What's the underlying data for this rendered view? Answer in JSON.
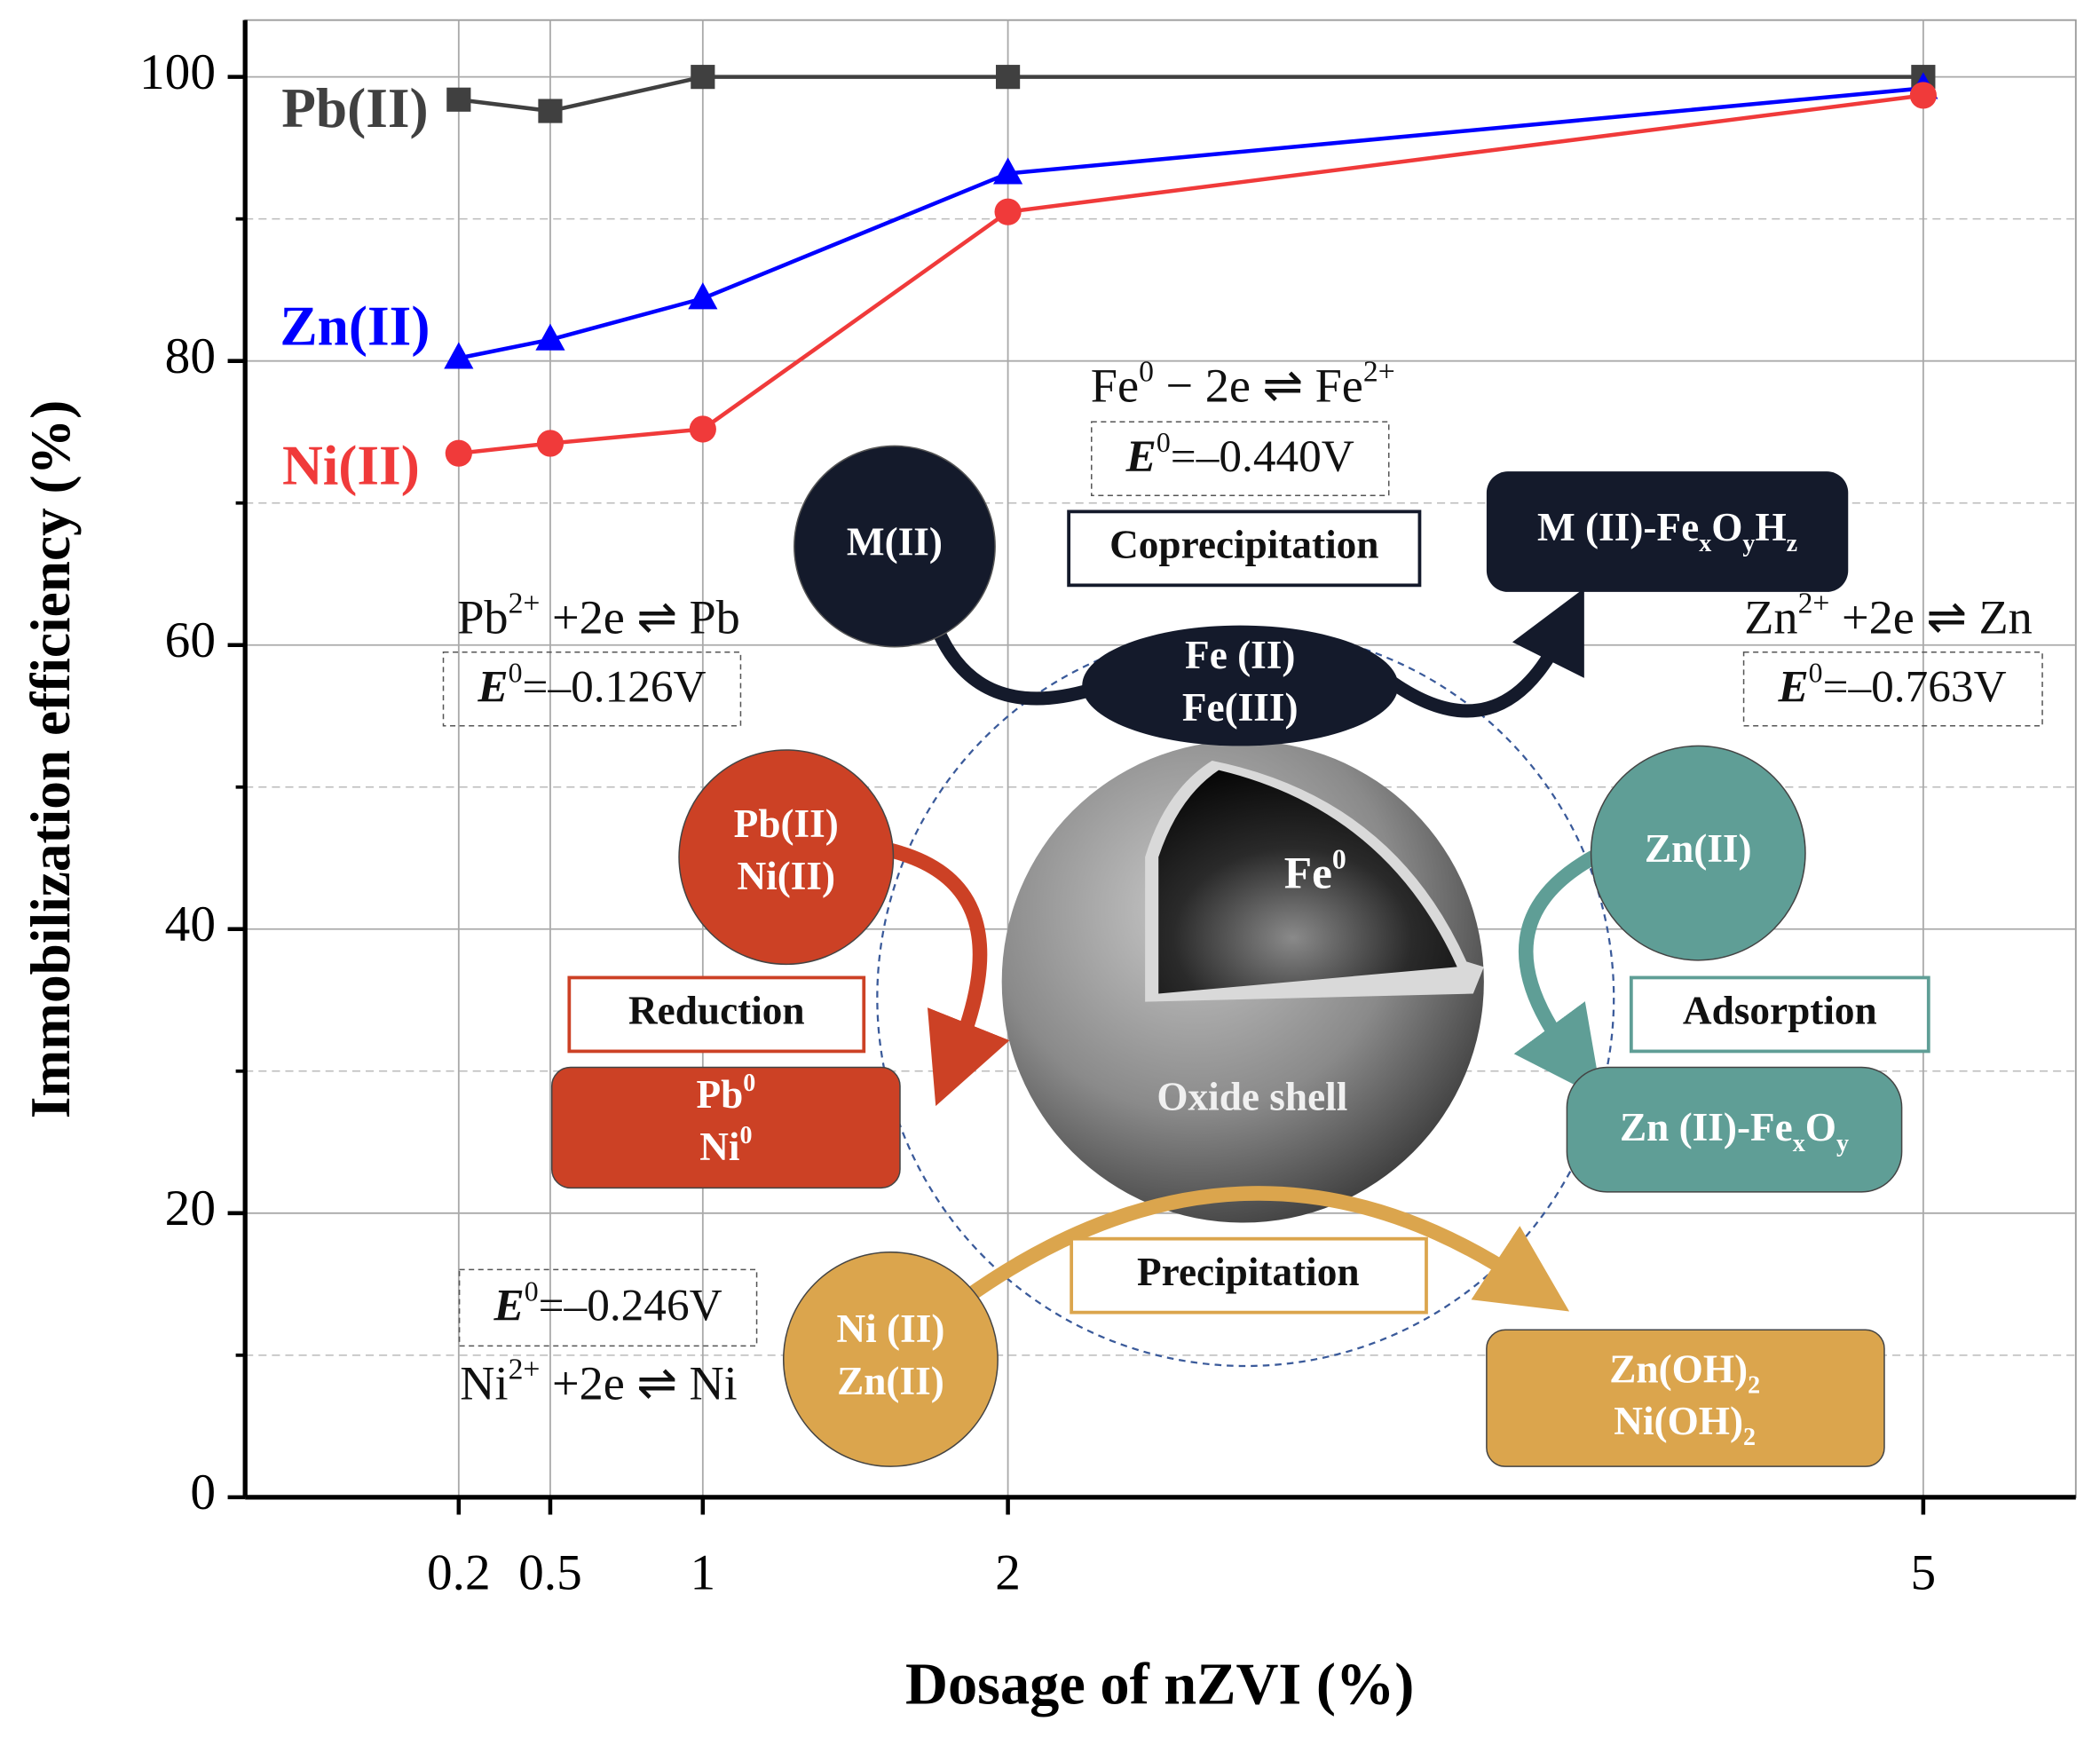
{
  "chart_data": {
    "type": "line",
    "xlabel": "Dosage of nZVI (%)",
    "ylabel": "Immobilization efficiency (%)",
    "x": [
      0.2,
      0.5,
      1,
      2,
      5
    ],
    "xlim": [
      -0.5,
      5.5
    ],
    "xticks": [
      0.2,
      0.5,
      1,
      2,
      5
    ],
    "ylim": [
      0,
      104
    ],
    "yticks": [
      0,
      20,
      40,
      60,
      80,
      100
    ],
    "minor_yticks": [
      10,
      30,
      50,
      70,
      90
    ],
    "grid": true,
    "series": [
      {
        "name": "Pb(II)",
        "color": "#404040",
        "marker": "square",
        "values": [
          98.4,
          97.6,
          100,
          100,
          100
        ]
      },
      {
        "name": "Zn(II)",
        "color": "#0000ff",
        "marker": "triangle",
        "values": [
          80.2,
          81.5,
          84.4,
          93.2,
          99.2
        ]
      },
      {
        "name": "Ni(II)",
        "color": "#f03a3a",
        "marker": "circle",
        "values": [
          73.5,
          74.2,
          75.2,
          90.5,
          98.7
        ]
      }
    ]
  },
  "diagram": {
    "fe_eq": [
      [
        "Fe",
        {
          "sup": "0"
        },
        " − 2e ⇌ Fe",
        {
          "sup": "2+"
        }
      ]
    ],
    "fe_e0": [
      [
        {
          "i": "E"
        },
        {
          "sup": "0"
        },
        "=–0.440V"
      ]
    ],
    "m_ii": [
      [
        "M(II)"
      ]
    ],
    "coprecipitation": [
      [
        "Coprecipitation"
      ]
    ],
    "m_fe": [
      [
        "M (II)-Fe",
        {
          "sub": "x"
        },
        "O",
        {
          "sub": "y"
        },
        "H",
        {
          "sub": "z"
        }
      ]
    ],
    "fe_ions": [
      [
        "Fe (II)"
      ],
      [
        "Fe(III)"
      ]
    ],
    "pb_eq": [
      [
        "Pb",
        {
          "sup": "2+"
        },
        " +2e ⇌ Pb"
      ]
    ],
    "pb_e0": [
      [
        {
          "i": "E"
        },
        {
          "sup": "0"
        },
        "=–0.126V"
      ]
    ],
    "zn_eq": [
      [
        "Zn",
        {
          "sup": "2+"
        },
        " +2e ⇌ Zn"
      ]
    ],
    "zn_e0": [
      [
        {
          "i": "E"
        },
        {
          "sup": "0"
        },
        "=–0.763V"
      ]
    ],
    "ni_e0": [
      [
        {
          "i": "E"
        },
        {
          "sup": "0"
        },
        "=–0.246V"
      ]
    ],
    "ni_eq": [
      [
        "Ni",
        {
          "sup": "2+"
        },
        " +2e ⇌ Ni"
      ]
    ],
    "fe0_core": [
      [
        "Fe",
        {
          "sup": "0"
        }
      ]
    ],
    "oxide_shell": [
      [
        "Oxide shell"
      ]
    ],
    "pb_ni": [
      [
        "Pb(II)"
      ],
      [
        "Ni(II)"
      ]
    ],
    "reduction": [
      [
        "Reduction"
      ]
    ],
    "pb0_ni0": [
      [
        "Pb",
        {
          "sup": "0"
        }
      ],
      [
        "Ni",
        {
          "sup": "0"
        }
      ]
    ],
    "zn_ii": [
      [
        "Zn(II)"
      ]
    ],
    "adsorption": [
      [
        "Adsorption"
      ]
    ],
    "zn_fe": [
      [
        "Zn (II)-Fe",
        {
          "sub": "x"
        },
        "O",
        {
          "sub": "y"
        }
      ]
    ],
    "ni_zn": [
      [
        "Ni (II)"
      ],
      [
        "Zn(II)"
      ]
    ],
    "precipitation": [
      [
        "Precipitation"
      ]
    ],
    "hydroxides": [
      [
        "Zn(OH)",
        {
          "sub": "2"
        }
      ],
      [
        "Ni(OH)",
        {
          "sub": "2"
        }
      ]
    ]
  }
}
